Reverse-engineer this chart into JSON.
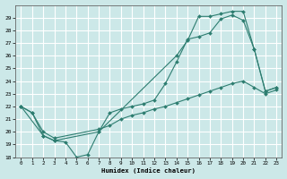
{
  "xlabel": "Humidex (Indice chaleur)",
  "ylabel": "",
  "xlim": [
    -0.5,
    23.5
  ],
  "ylim": [
    18,
    30
  ],
  "yticks": [
    18,
    19,
    20,
    21,
    22,
    23,
    24,
    25,
    26,
    27,
    28,
    29
  ],
  "xticks": [
    0,
    1,
    2,
    3,
    4,
    5,
    6,
    7,
    8,
    9,
    10,
    11,
    12,
    13,
    14,
    15,
    16,
    17,
    18,
    19,
    20,
    21,
    22,
    23
  ],
  "background_color": "#cce8e8",
  "grid_color": "#ffffff",
  "line_color": "#2d7d70",
  "lines": [
    {
      "x": [
        0,
        1,
        2,
        3,
        4,
        5,
        6,
        7,
        14,
        15,
        16,
        17,
        18,
        19,
        20,
        21,
        22,
        23
      ],
      "y": [
        22,
        21.5,
        19.7,
        19.3,
        19.2,
        18.0,
        18.2,
        20.0,
        26.0,
        27.2,
        29.1,
        29.1,
        29.3,
        29.5,
        29.5,
        26.5,
        23.2,
        23.5
      ]
    },
    {
      "x": [
        0,
        2,
        3,
        7,
        8,
        9,
        10,
        11,
        12,
        13,
        14,
        15,
        16,
        17,
        18,
        19,
        20,
        21,
        22,
        23
      ],
      "y": [
        22,
        19.7,
        19.3,
        20.0,
        21.5,
        21.8,
        22.0,
        22.2,
        22.5,
        23.8,
        25.5,
        27.3,
        27.5,
        27.8,
        28.9,
        29.2,
        28.8,
        26.5,
        23.2,
        23.5
      ]
    },
    {
      "x": [
        0,
        1,
        2,
        3,
        7,
        8,
        9,
        10,
        11,
        12,
        13,
        14,
        15,
        16,
        17,
        18,
        19,
        20,
        21,
        22,
        23
      ],
      "y": [
        22,
        21.5,
        20.0,
        19.5,
        20.2,
        20.5,
        21.0,
        21.3,
        21.5,
        21.8,
        22.0,
        22.3,
        22.6,
        22.9,
        23.2,
        23.5,
        23.8,
        24.0,
        23.5,
        23.0,
        23.3
      ]
    }
  ]
}
